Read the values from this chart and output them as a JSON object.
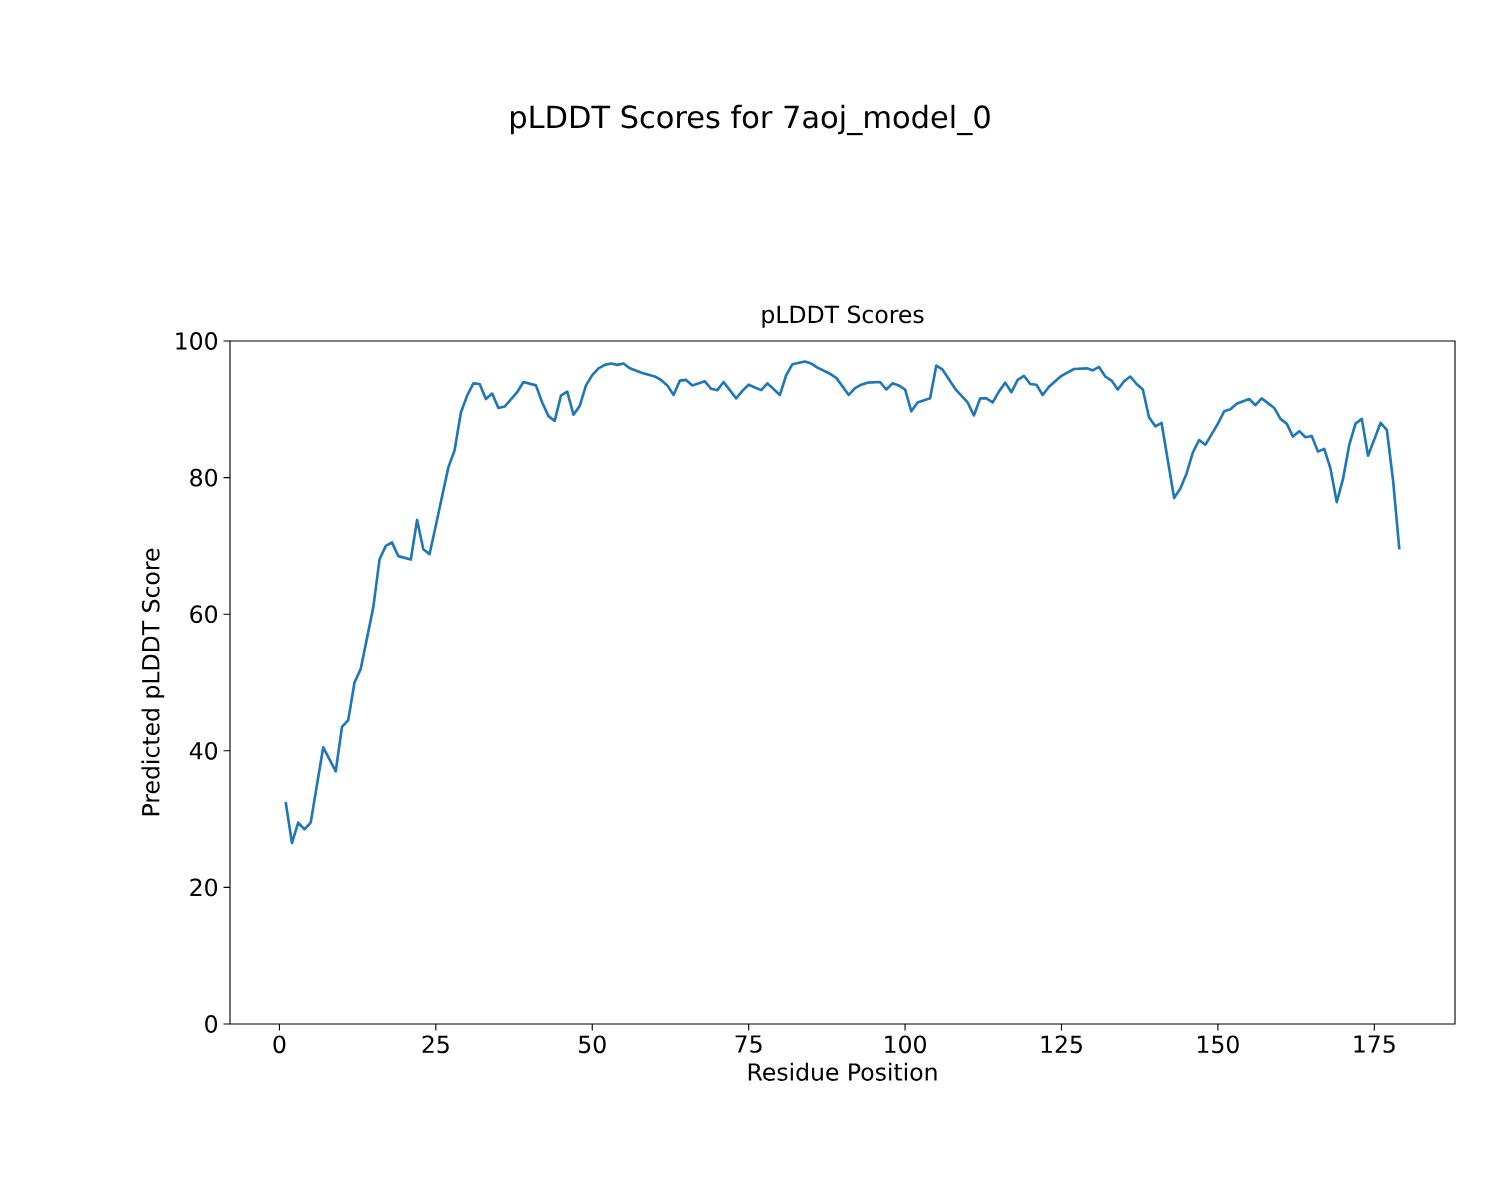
{
  "chart_data": {
    "type": "line",
    "title": "pLDDT Scores for 7aoj_model_0",
    "subtitle": "pLDDT Scores",
    "xlabel": "Residue Position",
    "ylabel": "Predicted pLDDT Score",
    "xlim": [
      -7.9,
      187.9
    ],
    "ylim": [
      0,
      100
    ],
    "xticks": [
      0,
      25,
      50,
      75,
      100,
      125,
      150,
      175
    ],
    "yticks": [
      0,
      20,
      40,
      60,
      80,
      100
    ],
    "grid": false,
    "series": [
      {
        "color": "#1f77b4",
        "x": [
          1,
          2,
          3,
          4,
          5,
          7,
          9,
          10,
          11,
          12,
          13,
          15,
          16,
          17,
          18,
          19,
          21,
          22,
          23,
          24,
          25,
          27,
          28,
          29,
          30,
          31,
          32,
          33,
          34,
          35,
          36,
          38,
          39,
          41,
          42,
          43,
          44,
          45,
          46,
          47,
          48,
          49,
          50,
          51,
          52,
          53,
          54,
          55,
          56,
          58,
          60,
          61,
          62,
          63,
          64,
          65,
          66,
          68,
          69,
          70,
          71,
          72,
          73,
          74,
          75,
          76,
          77,
          78,
          80,
          81,
          82,
          84,
          85,
          86,
          88,
          89,
          91,
          92,
          93,
          94,
          96,
          97,
          98,
          99,
          100,
          101,
          102,
          104,
          105,
          106,
          107,
          108,
          110,
          111,
          112,
          113,
          114,
          115,
          116,
          117,
          118,
          119,
          120,
          121,
          122,
          123,
          125,
          127,
          129,
          130,
          131,
          132,
          133,
          134,
          135,
          136,
          137,
          138,
          139,
          140,
          141,
          143,
          144,
          145,
          146,
          147,
          148,
          150,
          151,
          152,
          153,
          155,
          156,
          157,
          159,
          160,
          161,
          162,
          163,
          164,
          165,
          166,
          167,
          168,
          169,
          170,
          171,
          172,
          173,
          174,
          176,
          177,
          178,
          179
        ],
        "values": [
          32.5,
          26.5,
          29.5,
          28.5,
          29.5,
          40.5,
          37,
          43.5,
          44.5,
          50,
          52,
          61,
          68,
          70,
          70.5,
          68.5,
          68,
          73.8,
          69.5,
          68.8,
          73,
          81.5,
          84,
          89.5,
          92,
          93.8,
          93.7,
          91.5,
          92.3,
          90.2,
          90.4,
          92.5,
          94,
          93.5,
          91,
          89,
          88.3,
          92,
          92.6,
          89.2,
          90.5,
          93.5,
          95,
          96,
          96.5,
          96.7,
          96.5,
          96.7,
          96,
          95.3,
          94.8,
          94.3,
          93.5,
          92.1,
          94.2,
          94.3,
          93.5,
          94.1,
          93,
          92.8,
          94,
          92.8,
          91.6,
          92.7,
          93.6,
          93.2,
          92.8,
          93.8,
          92.1,
          95,
          96.6,
          97,
          96.7,
          96.1,
          95.2,
          94.6,
          92.1,
          93.1,
          93.6,
          93.9,
          94,
          92.9,
          93.8,
          93.5,
          92.9,
          89.7,
          91,
          91.6,
          96.4,
          95.8,
          94.4,
          93,
          91,
          89.1,
          91.6,
          91.6,
          91,
          92.6,
          93.9,
          92.5,
          94.3,
          94.9,
          93.7,
          93.6,
          92.1,
          93.3,
          94.9,
          95.9,
          96,
          95.7,
          96.2,
          94.8,
          94.2,
          92.9,
          94.1,
          94.8,
          93.7,
          92.9,
          88.8,
          87.5,
          88,
          77,
          78.4,
          80.6,
          83.7,
          85.5,
          84.8,
          87.9,
          89.7,
          90,
          90.8,
          91.5,
          90.6,
          91.6,
          90.2,
          88.6,
          87.9,
          86,
          86.8,
          85.9,
          86.1,
          83.8,
          84.2,
          81.3,
          76.4,
          79.8,
          84.8,
          87.9,
          88.6,
          83.2,
          88,
          87,
          79.6,
          69.5
        ]
      }
    ]
  }
}
